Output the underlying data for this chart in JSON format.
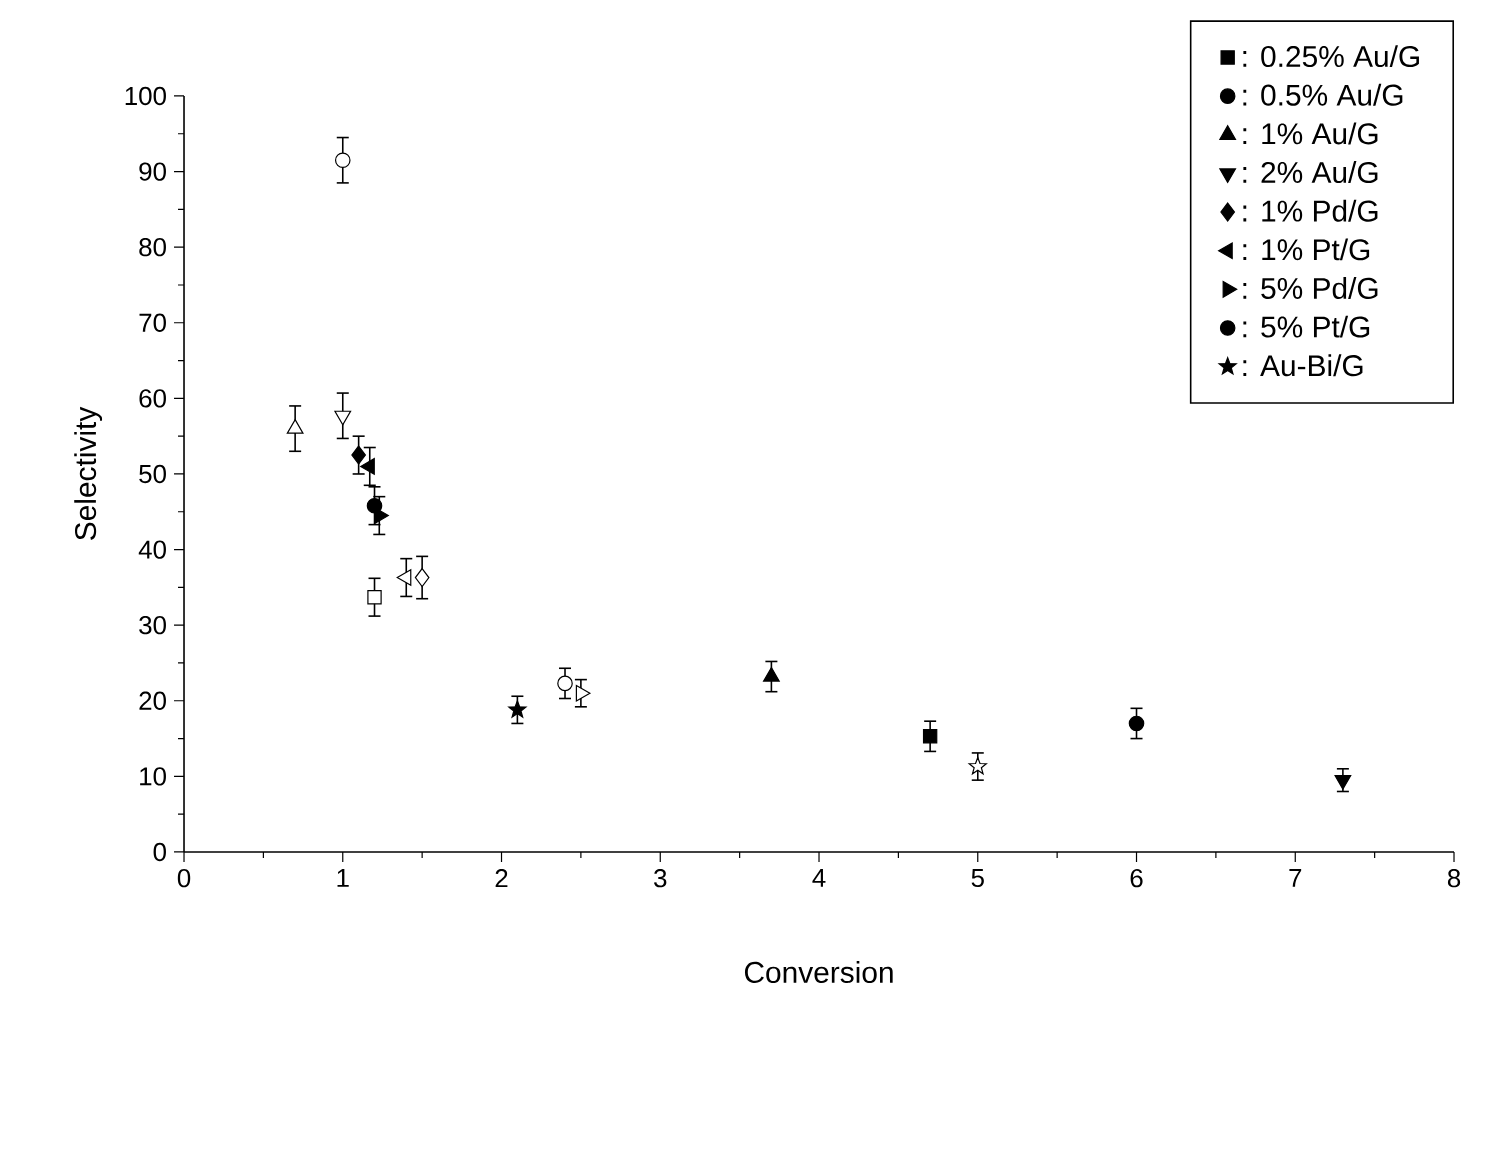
{
  "chart_data": {
    "type": "scatter",
    "xlabel": "Conversion",
    "ylabel": "Selectivity",
    "xlim": [
      0,
      8
    ],
    "xticks": [
      0,
      1,
      2,
      3,
      4,
      5,
      6,
      7,
      8
    ],
    "ylim": [
      0,
      100
    ],
    "yticks": [
      0,
      10,
      20,
      30,
      40,
      50,
      60,
      70,
      80,
      90,
      100
    ],
    "legend": "top right",
    "grid": false,
    "series": [
      {
        "name": ": 0.25% Au/G",
        "color": "#000000",
        "marker": "square",
        "x": [
          4.7
        ],
        "values": [
          15.3
        ],
        "errors": [
          2
        ]
      },
      {
        "name": ": 0.5% Au/G",
        "color": "#000000",
        "marker": "circle",
        "x": [
          6.0
        ],
        "values": [
          17
        ],
        "errors": [
          2
        ]
      },
      {
        "name": ": 1% Au/G",
        "color": "#000000",
        "marker": "triangle",
        "x": [
          3.7
        ],
        "values": [
          23.2
        ],
        "errors": [
          2
        ]
      },
      {
        "name": ": 2% Au/G",
        "color": "#000000",
        "marker": "triangle-down",
        "x": [
          7.3
        ],
        "values": [
          9.5
        ],
        "errors": [
          1.5
        ]
      },
      {
        "name": ": 1% Pd/G",
        "color": "#000000",
        "marker": "diamond",
        "x": [
          1.1
        ],
        "values": [
          52.5
        ],
        "errors": [
          2.5
        ]
      },
      {
        "name": ": 1% Pt/G",
        "color": "#000000",
        "marker": "triangle-left",
        "x": [
          1.17
        ],
        "values": [
          51
        ],
        "errors": [
          2.5
        ]
      },
      {
        "name": ": 5% Pd/G",
        "color": "#000000",
        "marker": "triangle-right",
        "x": [
          1.23
        ],
        "values": [
          44.5
        ],
        "errors": [
          2.5
        ]
      },
      {
        "name": ": 5% Pt/G",
        "color": "#000000",
        "marker": "circle",
        "x": [
          1.2
        ],
        "values": [
          45.8
        ],
        "errors": [
          2.5
        ]
      },
      {
        "name": ": Au-Bi/G",
        "color": "#000000",
        "marker": "star",
        "x": [
          2.1
        ],
        "values": [
          18.8
        ],
        "errors": [
          1.8
        ]
      },
      {
        "color": "#ffffff",
        "marker": "square",
        "x": [
          1.2
        ],
        "values": [
          33.7
        ],
        "errors": [
          2.5
        ]
      },
      {
        "color": "#ffffff",
        "marker": "circle",
        "x": [
          1.0
        ],
        "values": [
          91.5
        ],
        "errors": [
          3
        ]
      },
      {
        "color": "#ffffff",
        "marker": "triangle",
        "x": [
          0.7
        ],
        "values": [
          56
        ],
        "errors": [
          3
        ]
      },
      {
        "color": "#ffffff",
        "marker": "triangle-down",
        "x": [
          1.0
        ],
        "values": [
          57.7
        ],
        "errors": [
          3
        ]
      },
      {
        "color": "#ffffff",
        "marker": "diamond",
        "x": [
          1.5
        ],
        "values": [
          36.3
        ],
        "errors": [
          2.8
        ]
      },
      {
        "color": "#ffffff",
        "marker": "triangle-left",
        "x": [
          1.4
        ],
        "values": [
          36.3
        ],
        "errors": [
          2.5
        ]
      },
      {
        "color": "#ffffff",
        "marker": "triangle-right",
        "x": [
          2.5
        ],
        "values": [
          21
        ],
        "errors": [
          1.8
        ]
      },
      {
        "color": "#ffffff",
        "marker": "circle",
        "x": [
          2.4
        ],
        "values": [
          22.3
        ],
        "errors": [
          2
        ]
      },
      {
        "color": "#ffffff",
        "marker": "star",
        "x": [
          5.0
        ],
        "values": [
          11.3
        ],
        "errors": [
          1.8
        ]
      }
    ]
  }
}
